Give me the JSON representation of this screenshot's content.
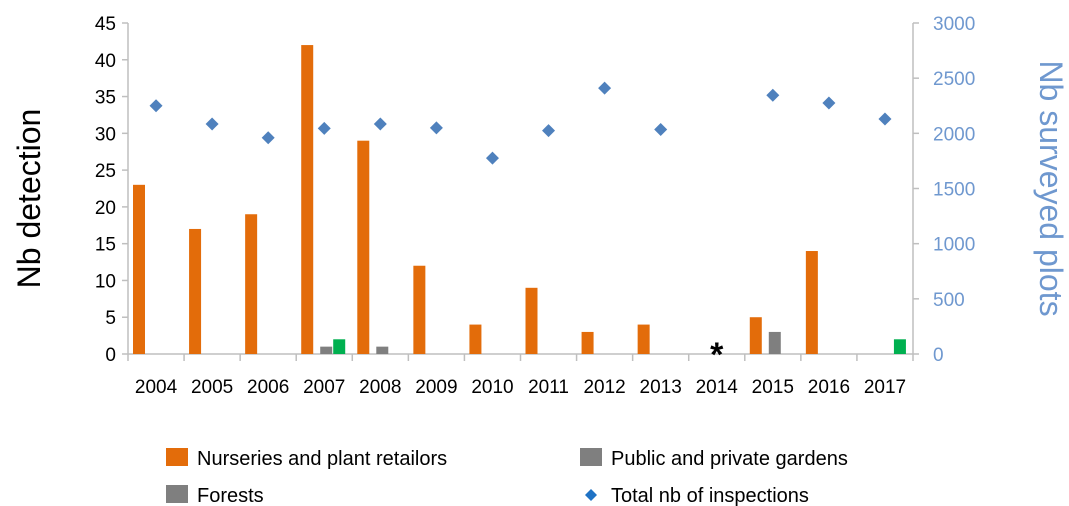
{
  "chart_data": {
    "type": "bar",
    "categories": [
      "2004",
      "2005",
      "2006",
      "2007",
      "2008",
      "2009",
      "2010",
      "2011",
      "2012",
      "2013",
      "2014",
      "2015",
      "2016",
      "2017"
    ],
    "series": [
      {
        "name": "Nurseries and plant retailors",
        "kind": "bar",
        "axis": "left",
        "color": "#e36c0a",
        "values": [
          23,
          17,
          19,
          42,
          29,
          12,
          4,
          9,
          3,
          4,
          0,
          5,
          14,
          0
        ]
      },
      {
        "name": "Public and private  gardens",
        "kind": "bar",
        "axis": "left",
        "color": "#7f7f7f",
        "values": [
          0,
          0,
          0,
          1,
          1,
          0,
          0,
          0,
          0,
          0,
          0,
          3,
          0,
          0
        ]
      },
      {
        "name": "Forests",
        "kind": "bar",
        "axis": "left",
        "color": "#00b050",
        "values": [
          0,
          0,
          0,
          2,
          0,
          0,
          0,
          0,
          0,
          0,
          0,
          0,
          0,
          2
        ]
      },
      {
        "name": "Total nb of inspections",
        "kind": "scatter",
        "axis": "right",
        "color": "#4f81bd",
        "values": [
          2250,
          2085,
          1960,
          2045,
          2085,
          2050,
          1775,
          2025,
          2410,
          2035,
          null,
          2345,
          2275,
          2130
        ]
      }
    ],
    "legend": [
      {
        "label": "Nurseries and plant retailors",
        "symbol": "square",
        "color": "#e36c0a"
      },
      {
        "label": "Public and private  gardens",
        "symbol": "square",
        "color": "#7f7f7f"
      },
      {
        "label": "Forests",
        "symbol": "square",
        "color": "#7f7f7f"
      },
      {
        "label": "Total nb of inspections",
        "symbol": "diamond",
        "color": "#1f72c4"
      }
    ],
    "ylabel": "Nb detection",
    "y2label": "Nb surveyed plots",
    "ylim": [
      0,
      45
    ],
    "y2lim": [
      0,
      3000
    ],
    "yticks": [
      "0",
      "5",
      "10",
      "15",
      "20",
      "25",
      "30",
      "35",
      "40",
      "45"
    ],
    "y2ticks": [
      "0",
      "500",
      "1000",
      "1500",
      "2000",
      "2500",
      "3000"
    ],
    "annotation": {
      "text": "*",
      "category": "2014"
    },
    "grid": false,
    "legend_position": "bottom"
  }
}
